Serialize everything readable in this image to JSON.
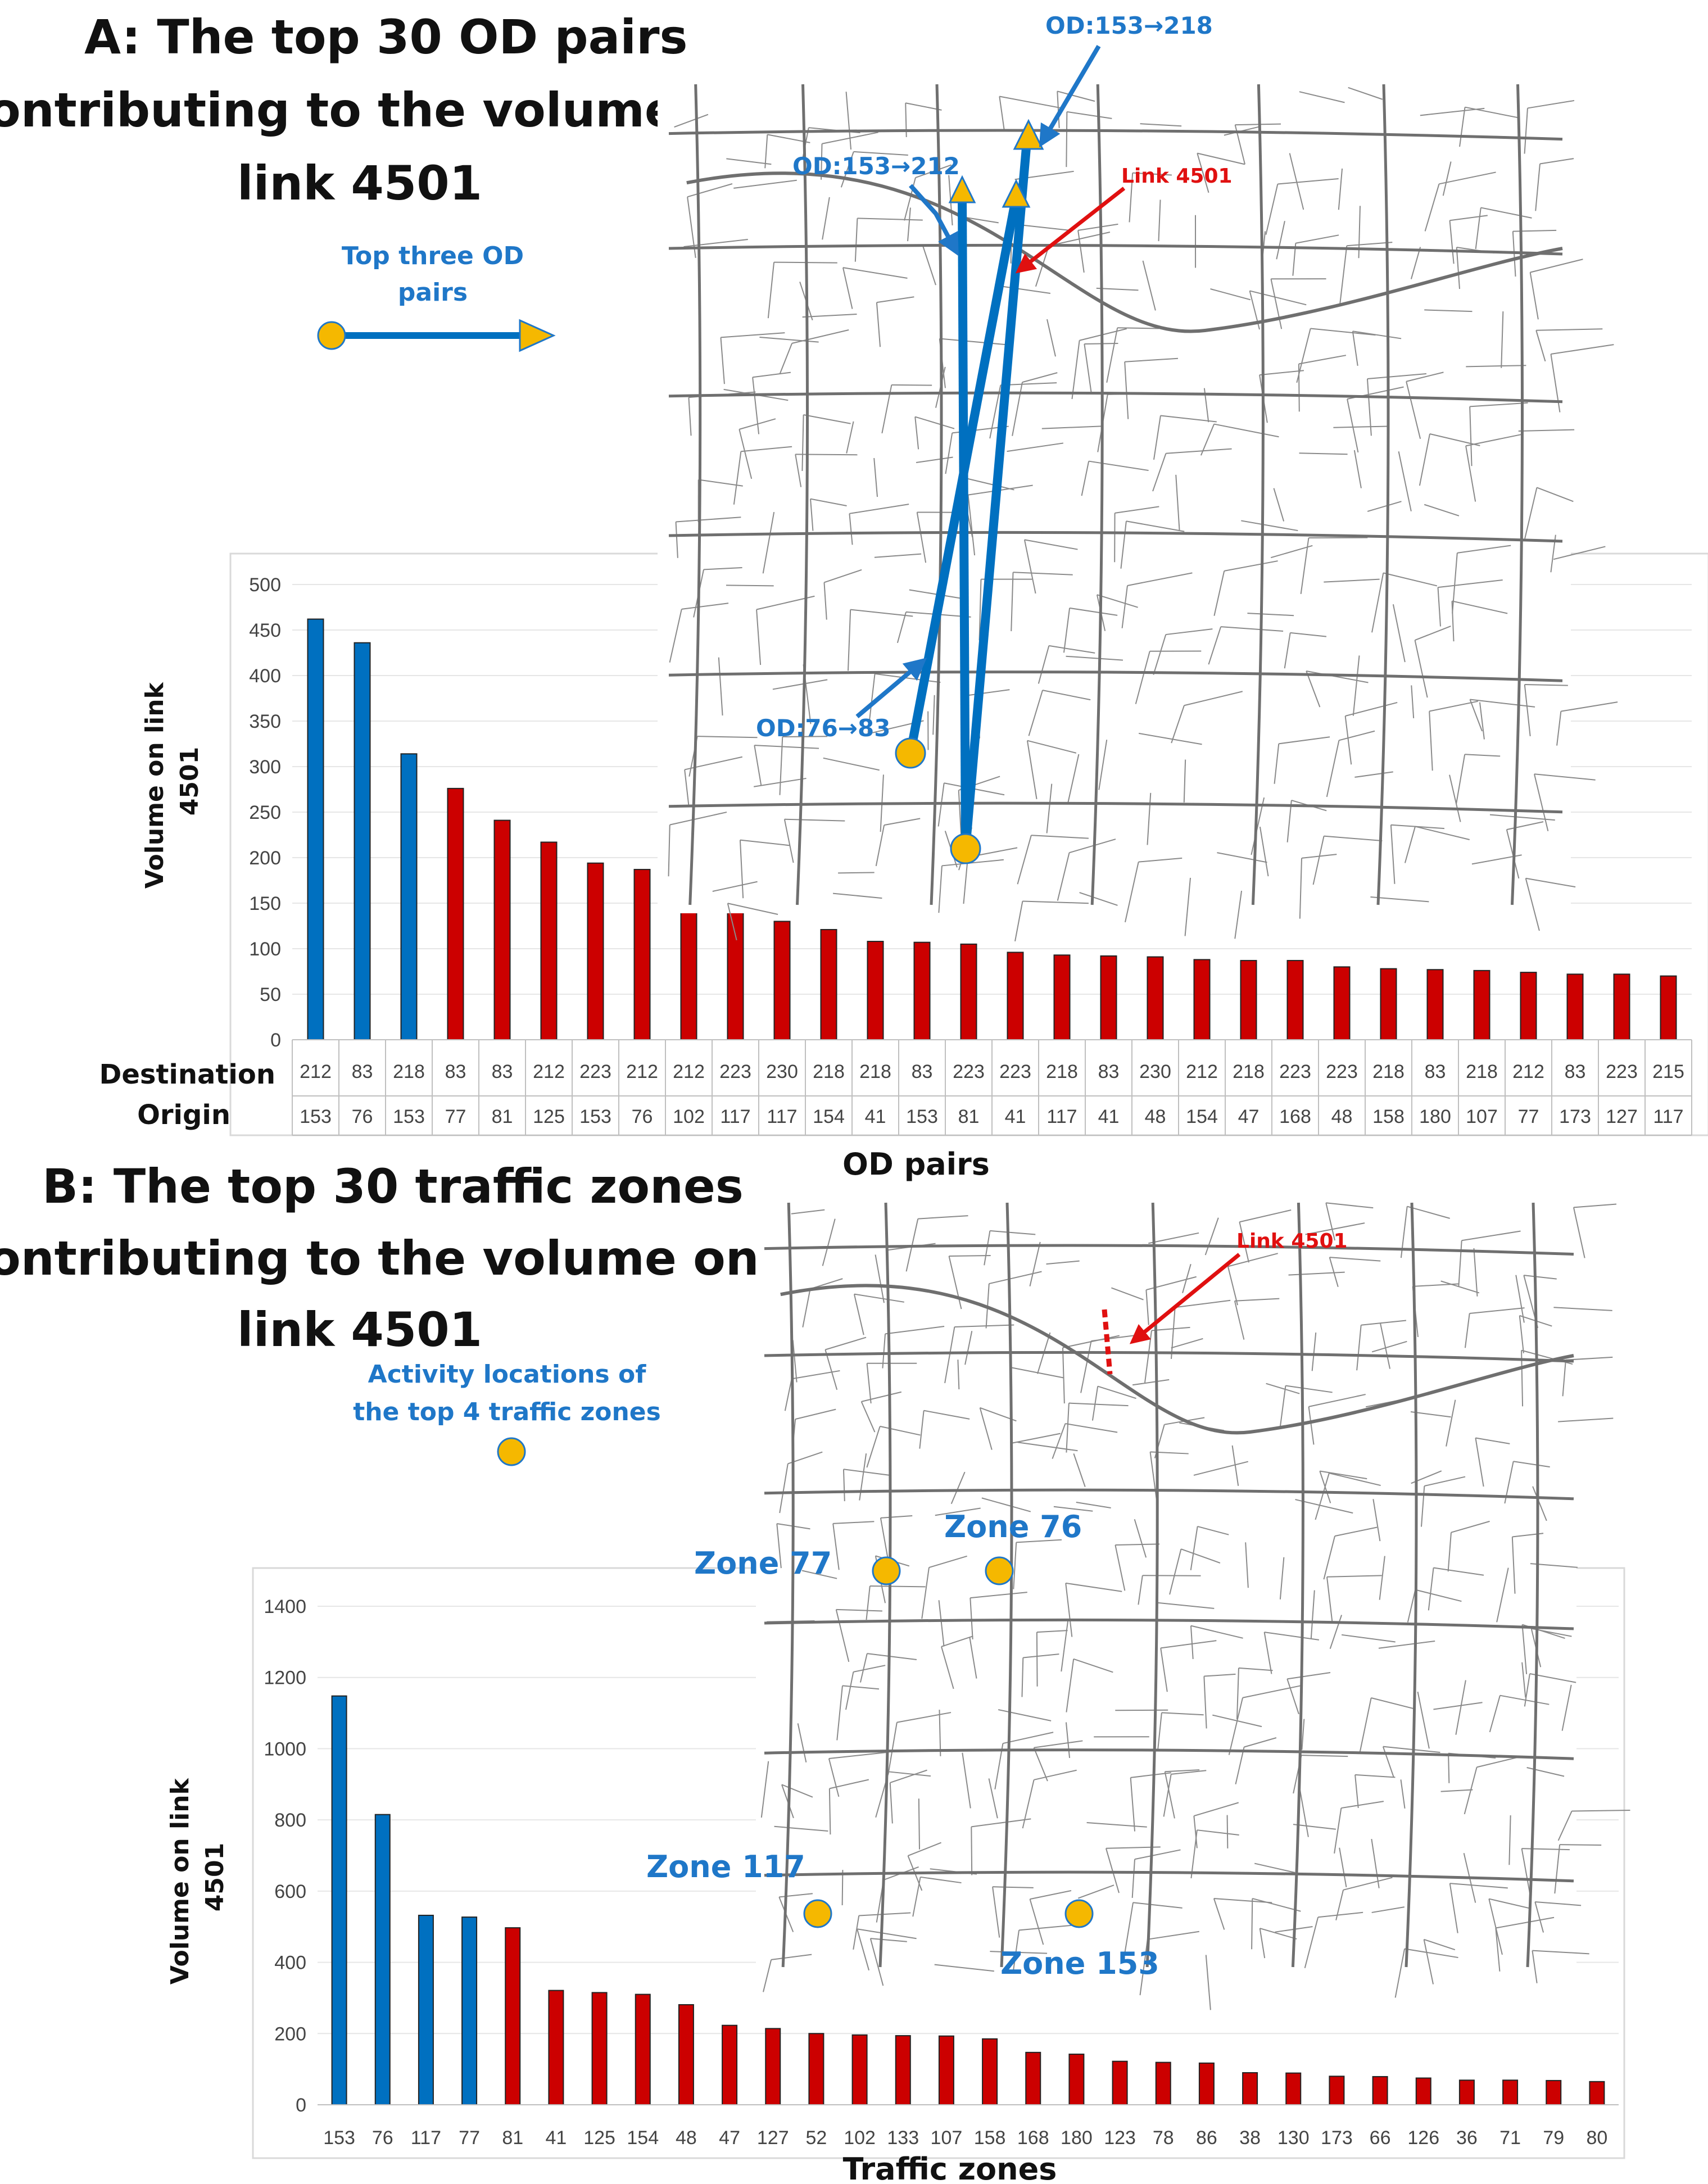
{
  "panel_a": {
    "title_lines": [
      "A:   The top 30 OD pairs",
      "contributing to the volume on",
      "link 4501"
    ],
    "legend_text_lines": [
      "Top three OD",
      "pairs"
    ],
    "od_labels": [
      "OD:153→218",
      "OD:153→212",
      "OD:76→83"
    ],
    "link_label": "Link 4501"
  },
  "panel_b": {
    "title_lines": [
      "B:   The top 30 traffic zones",
      "contributing to the volume on",
      "link 4501"
    ],
    "legend_text_lines": [
      "Activity locations of",
      "the top 4 traffic zones"
    ],
    "zone_labels": [
      "Zone 77",
      "Zone 76",
      "Zone 117",
      "Zone 153"
    ],
    "link_label": "Link 4501"
  },
  "colors": {
    "highlight": "#0070c0",
    "other": "#cc0000",
    "label_blue": "#1f77c8",
    "marker": "#f5b800",
    "road": "#8a8a8a"
  },
  "chart_data": [
    {
      "type": "bar",
      "ylabel": "Volume on link 4501",
      "xlabel": "OD pairs",
      "ylim": [
        0,
        500
      ],
      "yticks": [
        0,
        50,
        100,
        150,
        200,
        250,
        300,
        350,
        400,
        450,
        500
      ],
      "row_labels": [
        "Destination",
        "Origin"
      ],
      "destinations": [
        "212",
        "83",
        "218",
        "83",
        "83",
        "212",
        "223",
        "212",
        "212",
        "223",
        "230",
        "218",
        "218",
        "83",
        "223",
        "223",
        "218",
        "83",
        "230",
        "212",
        "218",
        "223",
        "223",
        "218",
        "83",
        "218",
        "212",
        "83",
        "223",
        "215"
      ],
      "origins": [
        "153",
        "76",
        "153",
        "77",
        "81",
        "125",
        "153",
        "76",
        "102",
        "117",
        "117",
        "154",
        "41",
        "153",
        "81",
        "41",
        "117",
        "41",
        "48",
        "154",
        "47",
        "168",
        "48",
        "158",
        "180",
        "107",
        "77",
        "173",
        "127",
        "117"
      ],
      "values": [
        462,
        436,
        314,
        276,
        241,
        217,
        194,
        187,
        143,
        142,
        130,
        121,
        108,
        107,
        105,
        96,
        93,
        92,
        91,
        88,
        87,
        87,
        80,
        78,
        77,
        76,
        74,
        72,
        72,
        70
      ],
      "highlight_count": 3
    },
    {
      "type": "bar",
      "ylabel": "Volume on link 4501",
      "xlabel": "Traffic zones",
      "ylim": [
        0,
        1400
      ],
      "yticks": [
        0,
        200,
        400,
        600,
        800,
        1000,
        1200,
        1400
      ],
      "categories": [
        "153",
        "76",
        "117",
        "77",
        "81",
        "41",
        "125",
        "154",
        "48",
        "47",
        "127",
        "52",
        "102",
        "133",
        "107",
        "158",
        "168",
        "180",
        "123",
        "78",
        "86",
        "38",
        "130",
        "173",
        "66",
        "126",
        "36",
        "71",
        "79",
        "80"
      ],
      "values": [
        1148,
        815,
        532,
        527,
        497,
        321,
        315,
        310,
        281,
        223,
        214,
        200,
        196,
        194,
        193,
        185,
        147,
        142,
        122,
        119,
        117,
        90,
        89,
        80,
        79,
        75,
        69,
        69,
        68,
        65
      ],
      "highlight_count": 4
    }
  ]
}
